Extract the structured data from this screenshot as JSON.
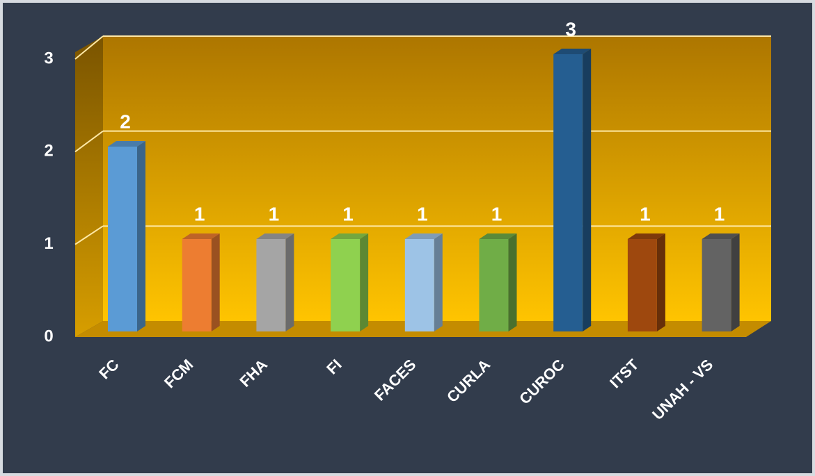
{
  "chart_data": {
    "type": "bar3d",
    "categories": [
      "FC",
      "FCM",
      "FHA",
      "FI",
      "FACES",
      "CURLA",
      "CUROC",
      "ITST",
      "UNAH - VS"
    ],
    "values": [
      2,
      1,
      1,
      1,
      1,
      1,
      3,
      1,
      1
    ],
    "colors": [
      "#5b9bd5",
      "#ed7d31",
      "#a5a5a5",
      "#8fd14f",
      "#9dc3e6",
      "#70ad47",
      "#255e91",
      "#9e480e",
      "#636363"
    ],
    "ylim": [
      0,
      3
    ],
    "yticks": [
      0,
      1,
      2,
      3
    ],
    "grid": true
  }
}
